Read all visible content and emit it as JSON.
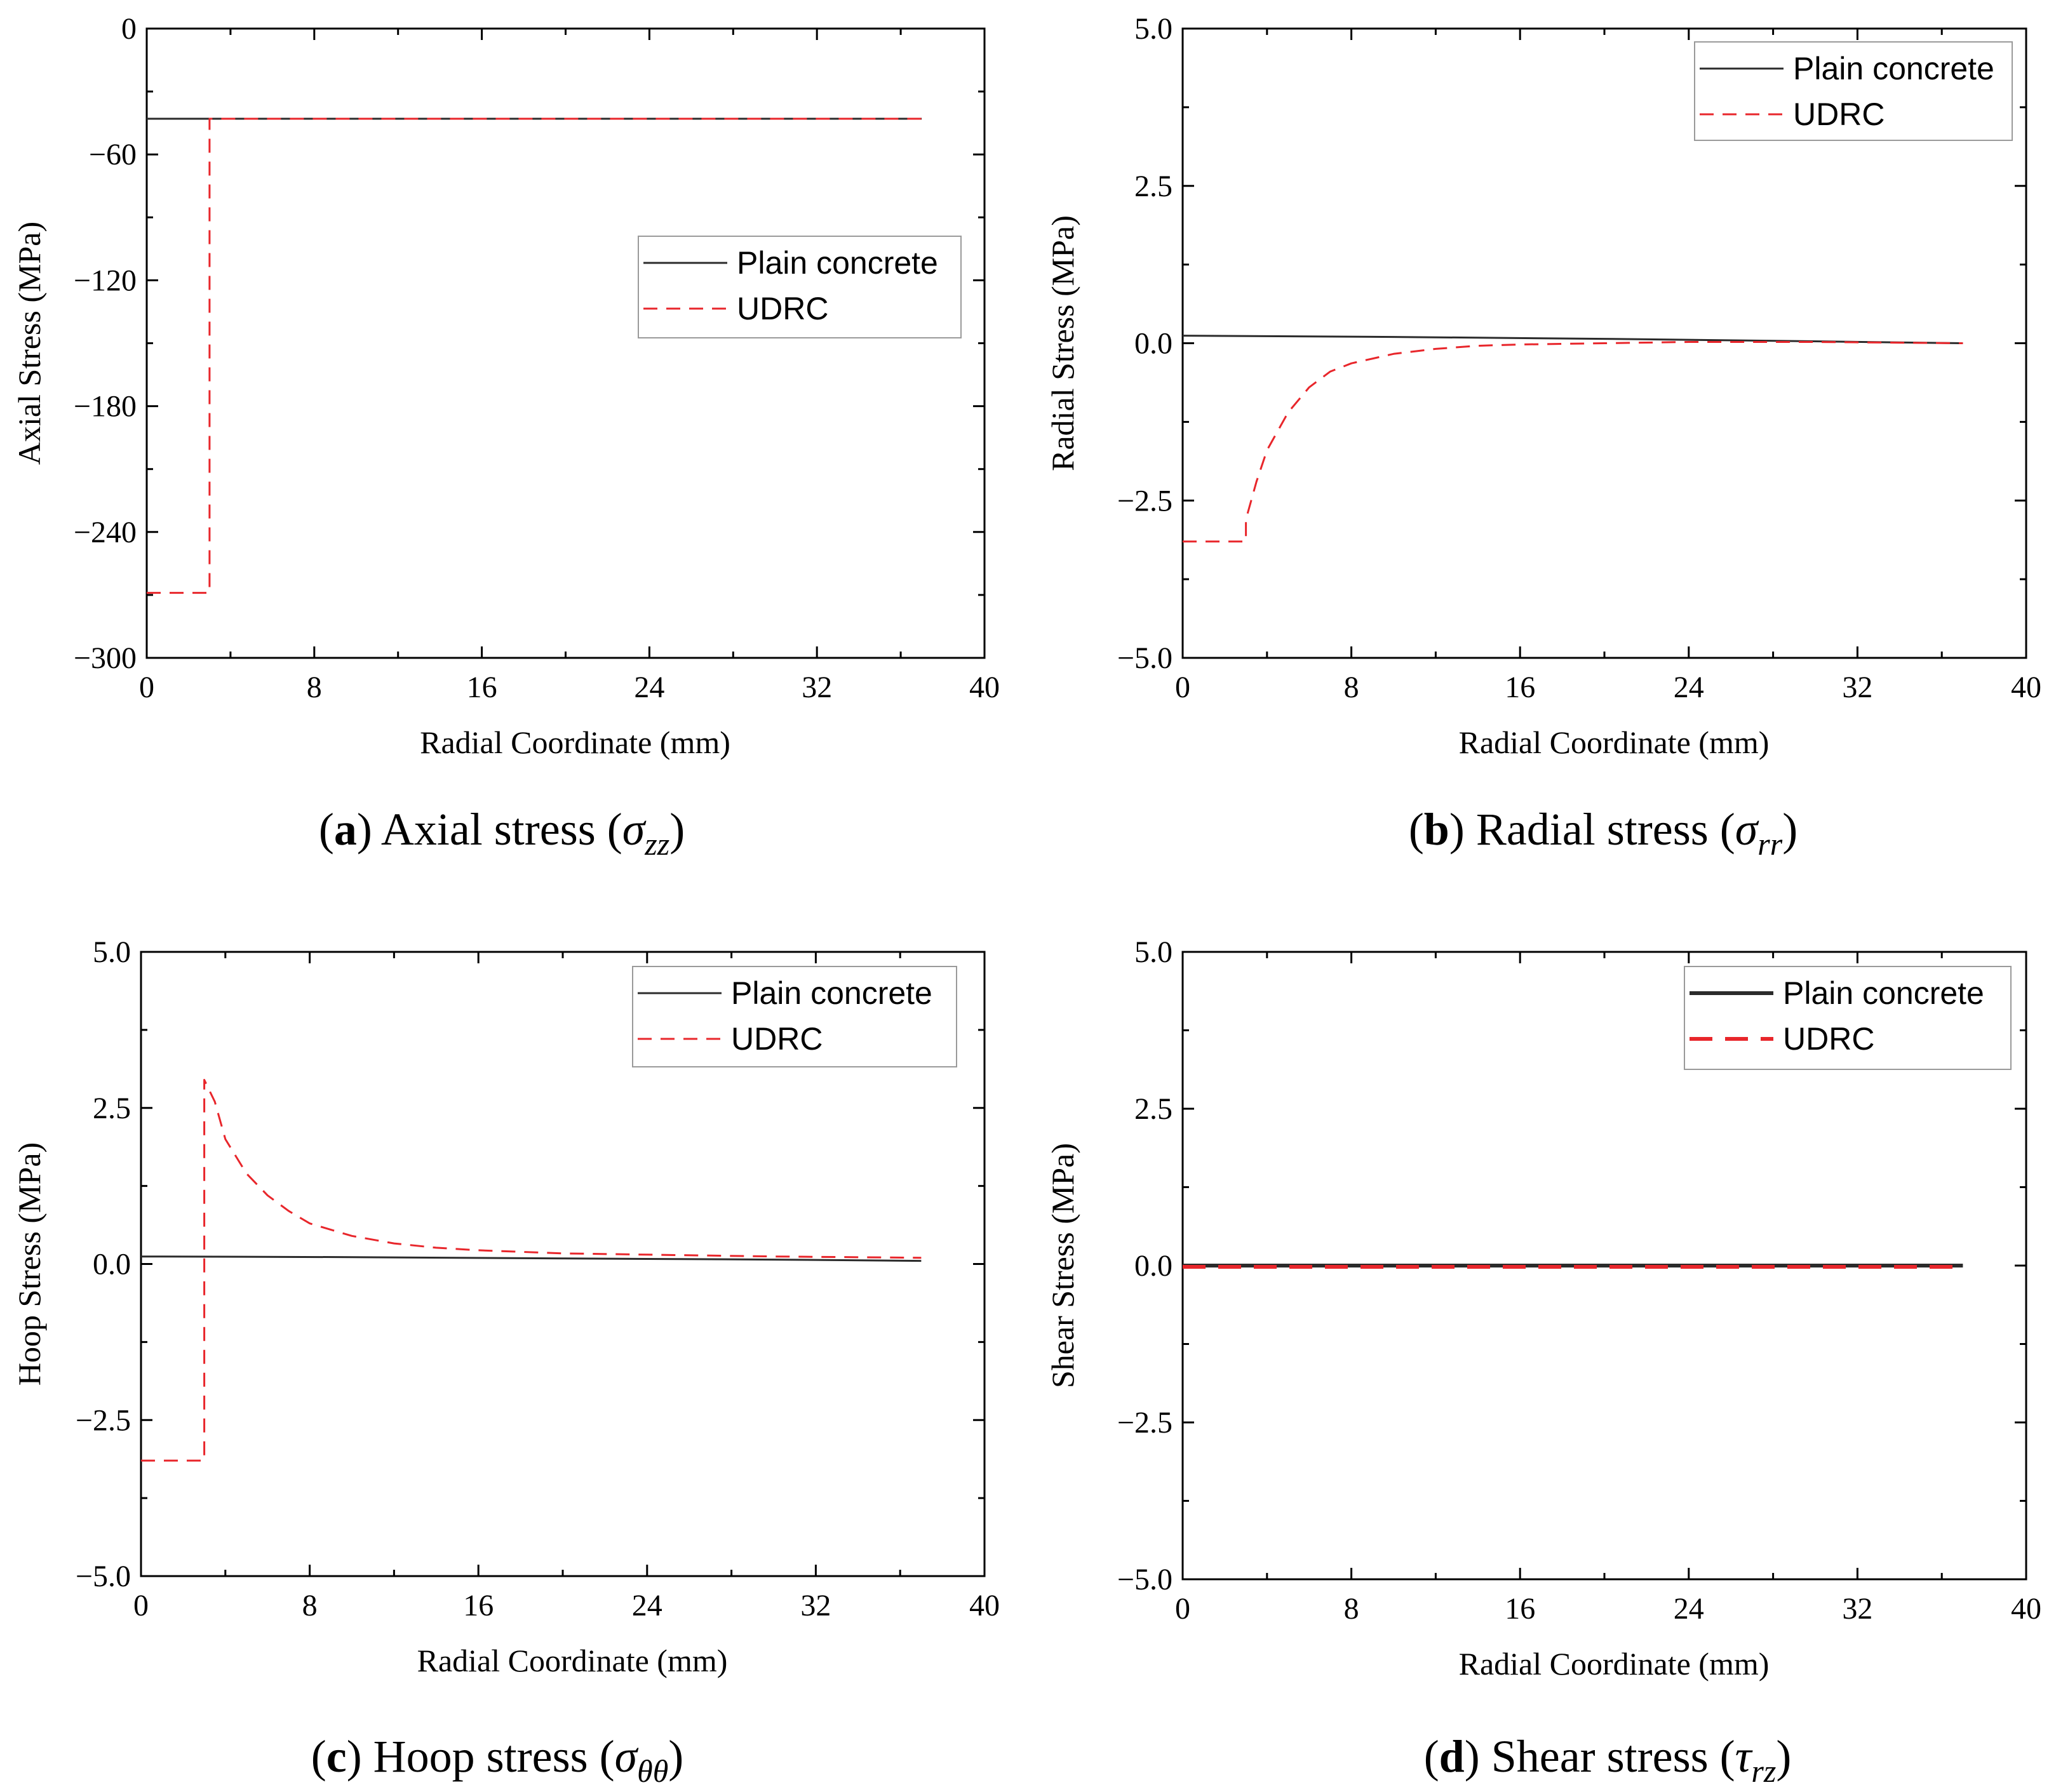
{
  "colors": {
    "plain": "#2b2b2b",
    "udrc": "#e8262b"
  },
  "chart_data": [
    {
      "id": "a",
      "type": "line",
      "caption": {
        "letter": "a",
        "text": " Axial stress (",
        "symbol": "σ",
        "sub": "zz",
        "close": ")"
      },
      "xlabel": "Radial Coordinate (mm)",
      "ylabel": "Axial Stress (MPa)",
      "xlim": [
        0,
        40
      ],
      "ylim": [
        -300,
        0
      ],
      "xticks": [
        0,
        8,
        16,
        24,
        32,
        40
      ],
      "yticks": [
        0,
        -60,
        -120,
        -180,
        -240,
        -300
      ],
      "yticklabels": [
        "0",
        "−60",
        "−120",
        "−180",
        "−240",
        "−300"
      ],
      "legend": {
        "position": "center-right",
        "entries": [
          "Plain concrete",
          "UDRC"
        ]
      },
      "series": [
        {
          "name": "Plain concrete",
          "style": "solid",
          "x": [
            0,
            37
          ],
          "y": [
            -43,
            -43
          ]
        },
        {
          "name": "UDRC",
          "style": "dashed",
          "x": [
            0,
            3,
            3,
            37
          ],
          "y": [
            -269,
            -269,
            -43,
            -43
          ]
        }
      ]
    },
    {
      "id": "b",
      "type": "line",
      "caption": {
        "letter": "b",
        "text": " Radial stress (",
        "symbol": "σ",
        "sub": "rr",
        "close": ")"
      },
      "xlabel": "Radial Coordinate (mm)",
      "ylabel": "Radial Stress (MPa)",
      "xlim": [
        0,
        40
      ],
      "ylim": [
        -5,
        5
      ],
      "xticks": [
        0,
        8,
        16,
        24,
        32,
        40
      ],
      "yticks": [
        5,
        2.5,
        0,
        -2.5,
        -5
      ],
      "yticklabels": [
        "5.0",
        "2.5",
        "0.0",
        "−2.5",
        "−5.0"
      ],
      "legend": {
        "position": "top-right",
        "entries": [
          "Plain concrete",
          "UDRC"
        ]
      },
      "series": [
        {
          "name": "Plain concrete",
          "style": "solid",
          "x": [
            0,
            10,
            20,
            30,
            37
          ],
          "y": [
            0.12,
            0.1,
            0.07,
            0.03,
            0.0
          ]
        },
        {
          "name": "UDRC",
          "style": "dashed",
          "x": [
            0,
            3,
            3,
            3.5,
            4,
            5,
            6,
            7,
            8,
            10,
            12,
            14,
            16,
            20,
            24,
            30,
            37
          ],
          "y": [
            -3.15,
            -3.15,
            -2.8,
            -2.2,
            -1.7,
            -1.1,
            -0.7,
            -0.45,
            -0.32,
            -0.17,
            -0.09,
            -0.04,
            -0.02,
            0.0,
            0.02,
            0.02,
            0.0
          ]
        }
      ]
    },
    {
      "id": "c",
      "type": "line",
      "caption": {
        "letter": "c",
        "text": " Hoop stress (",
        "symbol": "σ",
        "sub": "θθ",
        "close": ")"
      },
      "xlabel": "Radial Coordinate (mm)",
      "ylabel": "Hoop Stress (MPa)",
      "xlim": [
        0,
        40
      ],
      "ylim": [
        -5,
        5
      ],
      "xticks": [
        0,
        8,
        16,
        24,
        32,
        40
      ],
      "yticks": [
        5,
        2.5,
        0,
        -2.5,
        -5
      ],
      "yticklabels": [
        "5.0",
        "2.5",
        "0.0",
        "−2.5",
        "−5.0"
      ],
      "legend": {
        "position": "top-right",
        "entries": [
          "Plain concrete",
          "UDRC"
        ]
      },
      "series": [
        {
          "name": "Plain concrete",
          "style": "solid",
          "x": [
            0,
            10,
            20,
            30,
            37
          ],
          "y": [
            0.12,
            0.11,
            0.09,
            0.07,
            0.05
          ]
        },
        {
          "name": "UDRC",
          "style": "dashed",
          "x": [
            0,
            3,
            3,
            3.5,
            4,
            5,
            6,
            7,
            8,
            10,
            12,
            14,
            16,
            20,
            24,
            30,
            37
          ],
          "y": [
            -3.15,
            -3.15,
            2.95,
            2.6,
            2.0,
            1.45,
            1.1,
            0.85,
            0.65,
            0.45,
            0.33,
            0.26,
            0.22,
            0.17,
            0.15,
            0.12,
            0.1
          ]
        }
      ]
    },
    {
      "id": "d",
      "type": "line",
      "caption": {
        "letter": "d",
        "text": " Shear stress (",
        "symbol": "τ",
        "sub": "rz",
        "close": ")"
      },
      "xlabel": "Radial Coordinate (mm)",
      "ylabel": "Shear Stress (MPa)",
      "xlim": [
        0,
        40
      ],
      "ylim": [
        -5,
        5
      ],
      "xticks": [
        0,
        8,
        16,
        24,
        32,
        40
      ],
      "yticks": [
        5,
        2.5,
        0,
        -2.5,
        -5
      ],
      "yticklabels": [
        "5.0",
        "2.5",
        "0.0",
        "−2.5",
        "−5.0"
      ],
      "legend": {
        "position": "top-right",
        "entries": [
          "Plain concrete",
          "UDRC"
        ]
      },
      "series": [
        {
          "name": "Plain concrete",
          "style": "solid-thick",
          "x": [
            0,
            37
          ],
          "y": [
            0.0,
            0.0
          ]
        },
        {
          "name": "UDRC",
          "style": "dashed-thick",
          "x": [
            0,
            37
          ],
          "y": [
            -0.02,
            -0.02
          ]
        }
      ]
    }
  ]
}
